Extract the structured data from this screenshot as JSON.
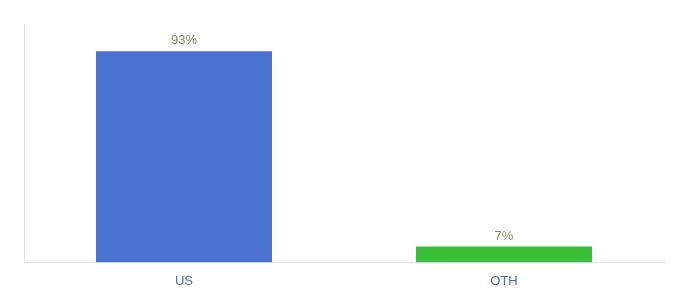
{
  "chart_data": {
    "type": "bar",
    "categories": [
      "US",
      "OTH"
    ],
    "values": [
      93,
      7
    ],
    "value_labels": [
      "93%",
      "7%"
    ],
    "colors": [
      "#4a72d1",
      "#3abf3a"
    ],
    "ylim": [
      0,
      105
    ],
    "grid": false,
    "data_labels": true,
    "tick_labels": "x"
  }
}
